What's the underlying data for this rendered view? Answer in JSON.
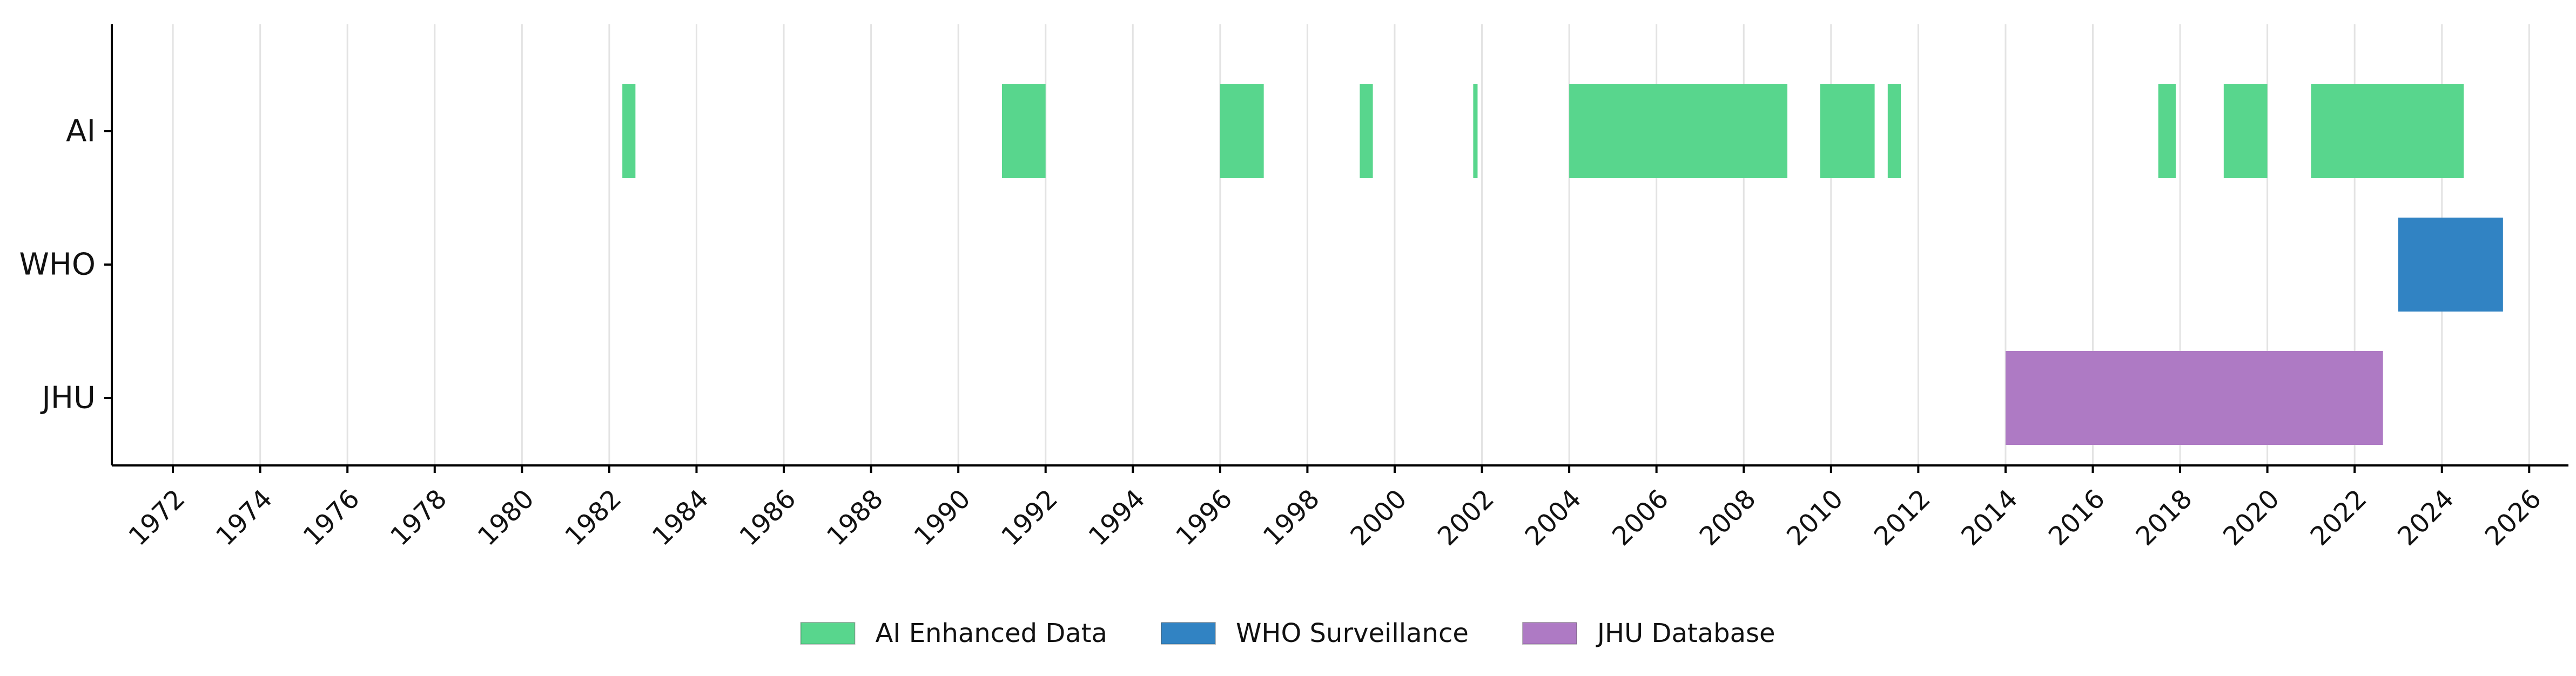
{
  "chart_data": {
    "type": "timeline",
    "title": "",
    "xlabel": "",
    "ylabel": "",
    "xlim": [
      1970.6,
      2026.9
    ],
    "grid": {
      "x": true,
      "y": false
    },
    "legend_position": "bottom-center",
    "x_ticks": [
      1972,
      1974,
      1976,
      1978,
      1980,
      1982,
      1984,
      1986,
      1988,
      1990,
      1992,
      1994,
      1996,
      1998,
      2000,
      2002,
      2004,
      2006,
      2008,
      2010,
      2012,
      2014,
      2016,
      2018,
      2020,
      2022,
      2024,
      2026
    ],
    "x_tick_labels": [
      "1972",
      "1974",
      "1976",
      "1978",
      "1980",
      "1982",
      "1984",
      "1986",
      "1988",
      "1990",
      "1992",
      "1994",
      "1996",
      "1998",
      "2000",
      "2002",
      "2004",
      "2006",
      "2008",
      "2010",
      "2012",
      "2014",
      "2016",
      "2018",
      "2020",
      "2022",
      "2024",
      "2026"
    ],
    "categories": [
      "AI",
      "WHO",
      "JHU"
    ],
    "series": [
      {
        "name": "AI Enhanced Data",
        "category": "AI",
        "color": "#58d68d",
        "intervals": [
          [
            1982.3,
            1982.6
          ],
          [
            1991.0,
            1992.0
          ],
          [
            1996.0,
            1997.0
          ],
          [
            1999.2,
            1999.5
          ],
          [
            2001.8,
            2001.9
          ],
          [
            2004.0,
            2009.0
          ],
          [
            2009.75,
            2011.0
          ],
          [
            2011.3,
            2011.6
          ],
          [
            2017.5,
            2017.9
          ],
          [
            2019.0,
            2020.0
          ],
          [
            2021.0,
            2024.5
          ]
        ]
      },
      {
        "name": "WHO Surveillance",
        "category": "WHO",
        "color": "#3183c3",
        "intervals": [
          [
            2023.0,
            2025.4
          ]
        ]
      },
      {
        "name": "JHU Database",
        "category": "JHU",
        "color": "#ae7ac4",
        "intervals": [
          [
            2014.0,
            2022.65
          ]
        ]
      }
    ]
  }
}
